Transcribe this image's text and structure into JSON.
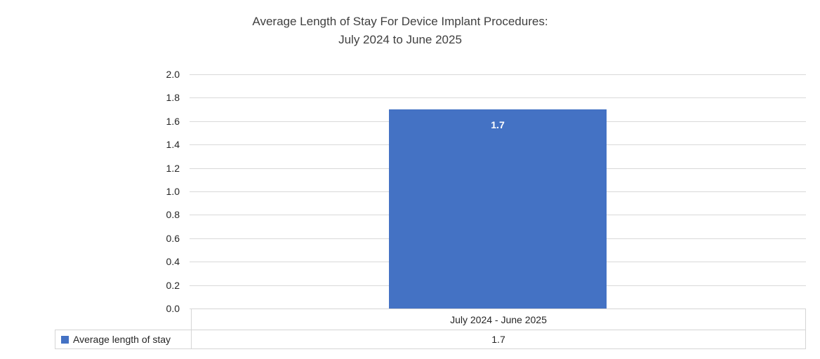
{
  "title": {
    "line1": "Average Length of Stay For Device Implant Procedures:",
    "line2": "July 2024 to June 2025"
  },
  "chart_data": {
    "type": "bar",
    "title": "Average Length of Stay For Device Implant Procedures: July 2024 to June 2025",
    "categories": [
      "July 2024 - June 2025"
    ],
    "series": [
      {
        "name": "Average length of stay",
        "values": [
          1.7
        ],
        "data_labels": [
          "1.7"
        ],
        "color": "#4472C4"
      }
    ],
    "xlabel": "",
    "ylabel": "",
    "ylim": [
      0.0,
      2.0
    ],
    "ytick_interval": 0.2,
    "yticks_top_to_bottom": [
      "2.0",
      "1.8",
      "1.6",
      "1.4",
      "1.2",
      "1.0",
      "0.8",
      "0.6",
      "0.4",
      "0.2",
      "0.0"
    ],
    "grid": true,
    "gridline_color": "#D9D9D9",
    "data_label_color": "#FFFFFF",
    "legend_position": "bottom-left-data-table"
  },
  "data_table": {
    "category_header": "July 2024 - June 2025",
    "rows": [
      {
        "legend": "Average length of stay",
        "value": "1.7"
      }
    ],
    "border_color": "#D5D5D5"
  }
}
